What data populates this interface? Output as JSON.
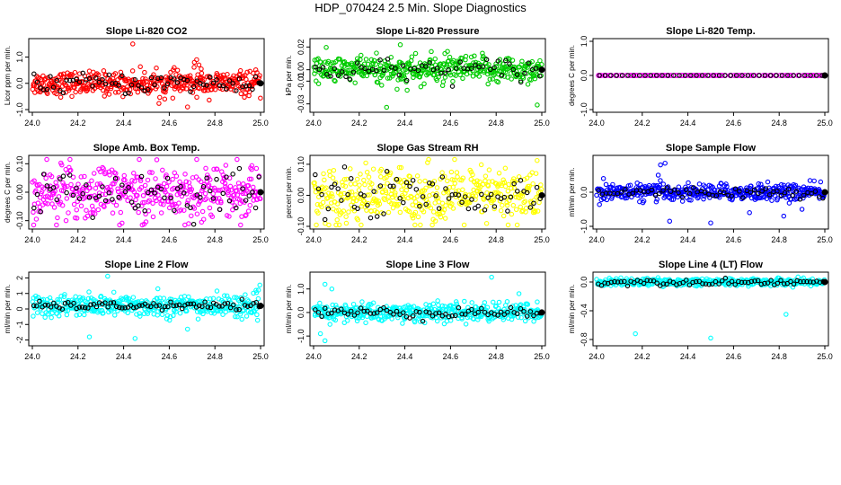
{
  "page_title": "HDP_070424  2.5 Min. Slope Diagnostics",
  "chart_data": [
    {
      "type": "scatter",
      "title": "Slope Li-820 CO2",
      "ylabel": "Licor ppm per min.",
      "xlim": [
        24.0,
        25.0
      ],
      "ylim": [
        -1.0,
        1.6
      ],
      "x_ticks": [
        "24.0",
        "24.2",
        "24.4",
        "24.6",
        "24.8",
        "25.0"
      ],
      "y_ticks": [
        {
          "v": -1.0,
          "label": "-1.0"
        },
        {
          "v": 0.0,
          "label": "0.0"
        },
        {
          "v": 1.0,
          "label": "1.0"
        }
      ],
      "color": "#ff0000",
      "spread": 0.22,
      "center": 0.0,
      "n": 420,
      "black_spread": 0.2,
      "n_black": 70,
      "outliers": [
        [
          24.44,
          1.5
        ],
        [
          24.72,
          0.9
        ],
        [
          24.73,
          0.7
        ],
        [
          24.74,
          0.55
        ],
        [
          24.71,
          0.8
        ],
        [
          24.68,
          -0.9
        ],
        [
          24.58,
          -0.6
        ]
      ]
    },
    {
      "type": "scatter",
      "title": "Slope Li-820 Pressure",
      "ylabel": "kPa per min.",
      "xlim": [
        24.0,
        25.0
      ],
      "ylim": [
        -0.035,
        0.025
      ],
      "x_ticks": [
        "24.0",
        "24.2",
        "24.4",
        "24.6",
        "24.8",
        "25.0"
      ],
      "y_ticks": [
        {
          "v": -0.03,
          "label": "-0.03"
        },
        {
          "v": -0.01,
          "label": "-0.01"
        },
        {
          "v": 0.0,
          "label": "0.00"
        },
        {
          "v": 0.02,
          "label": "0.02"
        }
      ],
      "color": "#00cc00",
      "spread": 0.006,
      "center": 0.0,
      "n": 420,
      "black_spread": 0.005,
      "n_black": 60,
      "outliers": [
        [
          24.32,
          -0.033
        ],
        [
          24.38,
          0.022
        ],
        [
          24.98,
          -0.031
        ],
        [
          24.41,
          -0.018
        ],
        [
          24.47,
          -0.015
        ]
      ]
    },
    {
      "type": "scatter",
      "title": "Slope Li-820 Temp.",
      "ylabel": "degrees C per min.",
      "xlim": [
        24.0,
        25.0
      ],
      "ylim": [
        -1.0,
        1.0
      ],
      "x_ticks": [
        "24.0",
        "24.2",
        "24.4",
        "24.6",
        "24.8",
        "25.0"
      ],
      "y_ticks": [
        {
          "v": -1.0,
          "label": "-1.0"
        },
        {
          "v": 0.0,
          "label": "0.0"
        },
        {
          "v": 1.0,
          "label": "1.0"
        }
      ],
      "color": "#ff00ff",
      "spread": 0.0,
      "center": 0.0,
      "n": 80,
      "black_spread": 0.0,
      "n_black": 40,
      "flat": true,
      "outliers": []
    },
    {
      "type": "scatter",
      "title": "Slope Amb. Box Temp.",
      "ylabel": "degrees C per min.",
      "xlim": [
        24.0,
        25.0
      ],
      "ylim": [
        -0.12,
        0.12
      ],
      "x_ticks": [
        "24.0",
        "24.2",
        "24.4",
        "24.6",
        "24.8",
        "25.0"
      ],
      "y_ticks": [
        {
          "v": -0.1,
          "label": "-0.10"
        },
        {
          "v": 0.0,
          "label": "0.00"
        },
        {
          "v": 0.1,
          "label": "0.10"
        }
      ],
      "color": "#ff00ff",
      "spread": 0.05,
      "center": 0.0,
      "n": 420,
      "black_spread": 0.04,
      "n_black": 70,
      "outliers": []
    },
    {
      "type": "scatter",
      "title": "Slope Gas Stream RH",
      "ylabel": "percent per min.",
      "xlim": [
        24.0,
        25.0
      ],
      "ylim": [
        -0.1,
        0.12
      ],
      "x_ticks": [
        "24.0",
        "24.2",
        "24.4",
        "24.6",
        "24.8",
        "25.0"
      ],
      "y_ticks": [
        {
          "v": -0.1,
          "label": "-0.10"
        },
        {
          "v": 0.0,
          "label": "0.00"
        },
        {
          "v": 0.1,
          "label": "0.10"
        }
      ],
      "color": "#ffff00",
      "spread": 0.045,
      "center": 0.0,
      "n": 420,
      "black_spread": 0.035,
      "n_black": 70,
      "outliers": []
    },
    {
      "type": "scatter",
      "title": "Slope Sample Flow",
      "ylabel": "ml/min per min.",
      "xlim": [
        24.0,
        25.0
      ],
      "ylim": [
        -1.0,
        1.0
      ],
      "x_ticks": [
        "24.0",
        "24.2",
        "24.4",
        "24.6",
        "24.8",
        "25.0"
      ],
      "y_ticks": [
        {
          "v": -1.0,
          "label": "-1.0"
        },
        {
          "v": 0.0,
          "label": "0.0"
        }
      ],
      "color": "#0000ff",
      "spread": 0.12,
      "center": 0.0,
      "n": 420,
      "black_spread": 0.08,
      "n_black": 60,
      "outliers": [
        [
          24.28,
          0.8
        ],
        [
          24.3,
          0.85
        ],
        [
          24.03,
          0.4
        ],
        [
          24.32,
          -0.85
        ],
        [
          24.5,
          -0.9
        ],
        [
          24.27,
          0.5
        ],
        [
          24.67,
          -0.6
        ],
        [
          24.75,
          0.3
        ],
        [
          24.82,
          -0.7
        ],
        [
          24.9,
          -0.5
        ]
      ]
    },
    {
      "type": "scatter",
      "title": "Slope Line 2 Flow",
      "ylabel": "ml/min per min.",
      "xlim": [
        24.0,
        25.0
      ],
      "ylim": [
        -2.2,
        2.2
      ],
      "x_ticks": [
        "24.0",
        "24.2",
        "24.4",
        "24.6",
        "24.8",
        "25.0"
      ],
      "y_ticks": [
        {
          "v": -2.0,
          "label": "-2"
        },
        {
          "v": -1.0,
          "label": "-1"
        },
        {
          "v": 0.0,
          "label": "0"
        },
        {
          "v": 1.0,
          "label": "1"
        },
        {
          "v": 2.0,
          "label": "2"
        }
      ],
      "color": "#00ffff",
      "spread": 0.35,
      "center": 0.2,
      "n": 420,
      "black_spread": 0.12,
      "n_black": 80,
      "outliers": [
        [
          24.33,
          2.2
        ],
        [
          24.45,
          -1.9
        ],
        [
          24.25,
          -1.8
        ],
        [
          24.68,
          -1.3
        ],
        [
          24.98,
          1.2
        ],
        [
          24.55,
          1.3
        ]
      ]
    },
    {
      "type": "scatter",
      "title": "Slope Line 3 Flow",
      "ylabel": "ml/min per min.",
      "xlim": [
        24.0,
        25.0
      ],
      "ylim": [
        -1.3,
        1.6
      ],
      "x_ticks": [
        "24.0",
        "24.2",
        "24.4",
        "24.6",
        "24.8",
        "25.0"
      ],
      "y_ticks": [
        {
          "v": -1.0,
          "label": "-1.0"
        },
        {
          "v": 0.0,
          "label": "0.0"
        },
        {
          "v": 1.0,
          "label": "1.0"
        }
      ],
      "color": "#00ffff",
      "spread": 0.2,
      "center": 0.0,
      "n": 420,
      "black_spread": 0.12,
      "n_black": 70,
      "outliers": [
        [
          24.05,
          1.2
        ],
        [
          24.03,
          -0.9
        ],
        [
          24.05,
          -1.2
        ],
        [
          24.78,
          1.5
        ],
        [
          24.9,
          0.8
        ],
        [
          24.08,
          1.0
        ]
      ]
    },
    {
      "type": "scatter",
      "title": "Slope Line 4 (LT) Flow",
      "ylabel": "ml/min per min.",
      "xlim": [
        24.0,
        25.0
      ],
      "ylim": [
        -0.85,
        0.1
      ],
      "x_ticks": [
        "24.0",
        "24.2",
        "24.4",
        "24.6",
        "24.8",
        "25.0"
      ],
      "y_ticks": [
        {
          "v": -0.8,
          "label": "-0.8"
        },
        {
          "v": -0.4,
          "label": "-0.4"
        },
        {
          "v": 0.0,
          "label": "0.0"
        }
      ],
      "color": "#00ffff",
      "spread": 0.025,
      "center": 0.0,
      "n": 420,
      "black_spread": 0.02,
      "n_black": 70,
      "outliers": [
        [
          24.17,
          -0.72
        ],
        [
          24.5,
          -0.78
        ],
        [
          24.83,
          -0.45
        ]
      ]
    }
  ]
}
